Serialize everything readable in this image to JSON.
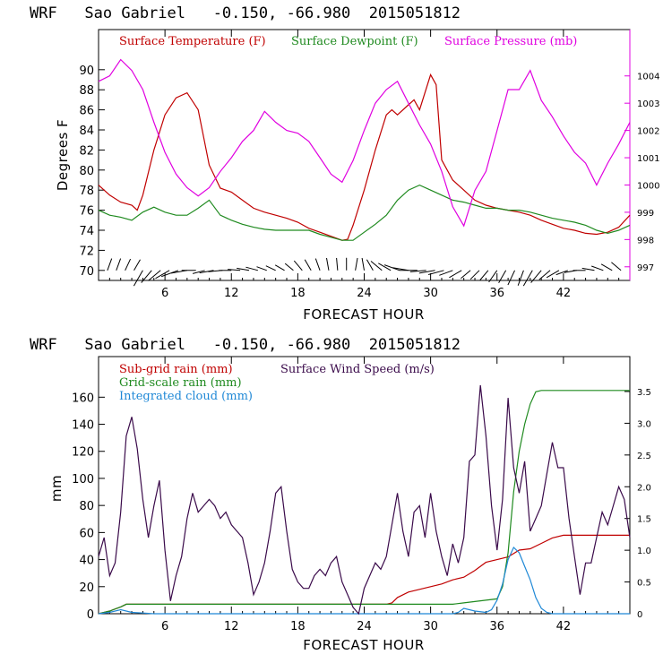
{
  "colors": {
    "temperature": "#c00000",
    "dewpoint": "#1f8a1f",
    "pressure": "#e000e0",
    "subgrid_rain": "#c00000",
    "gridscale_rain": "#1f8a1f",
    "cloud": "#1f88d6",
    "wind": "#3a0a4a",
    "axis": "#000000"
  },
  "chart_data": [
    {
      "type": "line",
      "title": "WRF   Sao Gabriel   -0.150, -66.980  2015051812",
      "xlabel": "FORECAST HOUR",
      "ylabel": "Degrees F",
      "xlim": [
        0,
        48
      ],
      "ylim": [
        69,
        94
      ],
      "y2lim": [
        996.5,
        1005.7
      ],
      "xticks": [
        6,
        12,
        18,
        24,
        30,
        36,
        42
      ],
      "yticks": [
        70,
        72,
        74,
        76,
        78,
        80,
        82,
        84,
        86,
        88,
        90
      ],
      "y2ticks": [
        997,
        998,
        999,
        1000,
        1001,
        1002,
        1003,
        1004
      ],
      "legend": [
        "Surface Temperature (F)",
        "Surface Dewpoint (F)",
        "Surface Pressure (mb)"
      ],
      "series": [
        {
          "name": "Surface Temperature (F)",
          "axis": "left",
          "x": [
            0,
            1,
            2,
            3,
            3.5,
            4,
            5,
            6,
            7,
            8,
            9,
            10,
            11,
            12,
            13,
            14,
            15,
            16,
            17,
            18,
            19,
            20,
            21,
            22,
            22.5,
            23,
            24,
            25,
            26,
            26.5,
            27,
            28,
            28.5,
            29,
            30,
            30.5,
            31,
            32,
            33,
            34,
            35,
            36,
            37,
            38,
            39,
            40,
            41,
            42,
            43,
            44,
            45,
            46,
            47,
            48
          ],
          "y": [
            78.5,
            77.5,
            76.8,
            76.5,
            76,
            77.5,
            82,
            85.5,
            87.2,
            87.7,
            86,
            80.5,
            78.2,
            77.8,
            77,
            76.2,
            75.8,
            75.5,
            75.2,
            74.8,
            74.2,
            73.8,
            73.4,
            73,
            73.1,
            74.5,
            78,
            82,
            85.5,
            86,
            85.5,
            86.5,
            87,
            86,
            89.5,
            88.5,
            81,
            79,
            78,
            77,
            76.5,
            76.2,
            76,
            75.8,
            75.5,
            75,
            74.6,
            74.2,
            74,
            73.7,
            73.6,
            73.8,
            74.3,
            75.5
          ]
        },
        {
          "name": "Surface Dewpoint (F)",
          "axis": "left",
          "x": [
            0,
            1,
            2,
            3,
            4,
            5,
            6,
            7,
            8,
            9,
            10,
            11,
            12,
            13,
            14,
            15,
            16,
            17,
            18,
            19,
            20,
            21,
            22,
            23,
            24,
            25,
            26,
            27,
            28,
            29,
            30,
            31,
            32,
            33,
            34,
            35,
            36,
            37,
            38,
            39,
            40,
            41,
            42,
            43,
            44,
            45,
            46,
            47,
            48
          ],
          "y": [
            76,
            75.5,
            75.3,
            75,
            75.8,
            76.3,
            75.8,
            75.5,
            75.5,
            76.2,
            77,
            75.5,
            75,
            74.6,
            74.3,
            74.1,
            74,
            74,
            74,
            74,
            73.6,
            73.3,
            73,
            73,
            73.8,
            74.6,
            75.5,
            77,
            78,
            78.5,
            78,
            77.5,
            77,
            76.8,
            76.5,
            76.2,
            76.2,
            76,
            76,
            75.8,
            75.5,
            75.2,
            75,
            74.8,
            74.5,
            74,
            73.7,
            74,
            74.5
          ]
        },
        {
          "name": "Surface Pressure (mb)",
          "axis": "right",
          "x": [
            0,
            1,
            2,
            3,
            4,
            5,
            6,
            7,
            8,
            9,
            10,
            11,
            12,
            13,
            14,
            15,
            16,
            17,
            18,
            19,
            20,
            21,
            22,
            23,
            24,
            25,
            26,
            27,
            28,
            29,
            30,
            31,
            32,
            33,
            34,
            35,
            36,
            37,
            38,
            39,
            40,
            41,
            42,
            43,
            44,
            45,
            46,
            47,
            48
          ],
          "y": [
            1003.8,
            1004,
            1004.6,
            1004.2,
            1003.5,
            1002.3,
            1001.2,
            1000.4,
            999.9,
            999.6,
            999.9,
            1000.5,
            1001,
            1001.6,
            1002,
            1002.7,
            1002.3,
            1002,
            1001.9,
            1001.6,
            1001,
            1000.4,
            1000.1,
            1000.9,
            1002,
            1003,
            1003.5,
            1003.8,
            1003,
            1002.2,
            1001.5,
            1000.5,
            999.2,
            998.5,
            999.8,
            1000.5,
            1002,
            1003.5,
            1003.5,
            1004.2,
            1003.1,
            1002.5,
            1001.8,
            1001.2,
            1000.8,
            1000,
            1000.8,
            1001.5,
            1002.3
          ]
        }
      ],
      "wind_barbs": {
        "x": [
          0.8,
          1.6,
          2.4,
          3.2,
          4.0,
          4.8,
          5.6,
          6.4,
          7.2,
          8.0,
          8.8,
          9.6,
          10.4,
          11.2,
          12.0,
          12.8,
          13.6,
          14.4,
          15.2,
          16.0,
          16.8,
          17.6,
          18.4,
          19.2,
          20.0,
          20.8,
          21.6,
          22.4,
          23.2,
          24.0,
          24.8,
          25.6,
          26.4,
          27.2,
          28.0,
          28.8,
          29.6,
          30.4,
          31.2,
          32.0,
          32.8,
          33.6,
          34.4,
          35.2,
          36.0,
          36.8,
          37.6,
          38.4,
          39.2,
          40.0,
          40.8,
          41.6,
          42.4,
          43.2,
          44.0,
          44.8,
          45.6,
          46.4,
          47.2
        ],
        "direction_deg": [
          20,
          20,
          25,
          30,
          210,
          220,
          230,
          240,
          250,
          260,
          270,
          255,
          260,
          265,
          270,
          275,
          280,
          285,
          290,
          295,
          300,
          310,
          320,
          330,
          340,
          350,
          355,
          0,
          10,
          350,
          330,
          310,
          300,
          290,
          280,
          270,
          265,
          260,
          255,
          250,
          240,
          230,
          225,
          220,
          215,
          210,
          205,
          200,
          210,
          220,
          230,
          240,
          250,
          260,
          270,
          280,
          290,
          300,
          310
        ],
        "length_px": [
          14,
          14,
          14,
          14,
          20,
          18,
          18,
          18,
          20,
          18,
          16,
          14,
          16,
          16,
          14,
          14,
          14,
          14,
          12,
          12,
          12,
          12,
          14,
          14,
          14,
          14,
          14,
          14,
          14,
          14,
          14,
          16,
          16,
          18,
          18,
          20,
          18,
          18,
          18,
          16,
          16,
          14,
          14,
          14,
          16,
          16,
          18,
          18,
          20,
          18,
          16,
          16,
          14,
          14,
          14,
          14,
          14,
          14,
          14
        ]
      }
    },
    {
      "type": "line",
      "title": "WRF   Sao Gabriel   -0.150, -66.980  2015051812",
      "xlabel": "FORECAST HOUR",
      "ylabel": "mm",
      "xlim": [
        0,
        48
      ],
      "ylim": [
        0,
        190
      ],
      "y2lim": [
        0,
        4.05
      ],
      "xticks": [
        6,
        12,
        18,
        24,
        30,
        36,
        42
      ],
      "yticks": [
        0,
        20,
        40,
        60,
        80,
        100,
        120,
        140,
        160
      ],
      "y2ticks": [
        0,
        0.5,
        1.0,
        1.5,
        2.0,
        2.5,
        3.0,
        3.5
      ],
      "legend": [
        "Sub-grid rain (mm)",
        "Grid-scale rain (mm)",
        "Integrated cloud (mm)",
        "Surface Wind Speed (m/s)"
      ],
      "series": [
        {
          "name": "Sub-grid rain (mm)",
          "axis": "left",
          "x": [
            0,
            1,
            2,
            2.5,
            3,
            26,
            26.5,
            27,
            28,
            29,
            30,
            31,
            32,
            33,
            34,
            35,
            36,
            37,
            38,
            39,
            40,
            41,
            42,
            43,
            44,
            45,
            46,
            47,
            48
          ],
          "y": [
            0,
            2,
            5,
            7,
            7,
            7,
            8,
            12,
            16,
            18,
            20,
            22,
            25,
            27,
            32,
            38,
            40,
            42,
            47,
            48,
            52,
            56,
            58,
            58,
            58,
            58,
            58,
            58,
            58
          ]
        },
        {
          "name": "Grid-scale rain (mm)",
          "axis": "left",
          "x": [
            0,
            1,
            2,
            2.5,
            3,
            26,
            30,
            31,
            32,
            33,
            34,
            35,
            36,
            36.5,
            37,
            37.5,
            38,
            38.5,
            39,
            39.5,
            40,
            41,
            48
          ],
          "y": [
            0,
            2,
            5,
            7,
            7,
            7,
            7,
            7,
            7,
            8,
            9,
            10,
            11,
            20,
            45,
            90,
            120,
            140,
            155,
            164,
            165,
            165,
            165
          ]
        },
        {
          "name": "Integrated cloud (mm)",
          "axis": "left",
          "x": [
            0,
            1,
            2,
            3,
            4,
            5,
            6,
            30,
            31,
            32,
            32.5,
            33,
            34,
            35,
            35.5,
            36,
            36.5,
            37,
            37.5,
            38,
            38.5,
            39,
            39.5,
            40,
            40.5,
            41,
            48
          ],
          "y": [
            0,
            1,
            3,
            1,
            0.5,
            0,
            0,
            0,
            0,
            0,
            1,
            4,
            2,
            1,
            3,
            10,
            22,
            40,
            49,
            45,
            35,
            25,
            12,
            4,
            1,
            0,
            0
          ]
        },
        {
          "name": "Surface Wind Speed (m/s)",
          "axis": "right",
          "x": [
            0,
            0.5,
            1,
            1.5,
            2,
            2.5,
            3,
            3.5,
            4,
            4.5,
            5,
            5.5,
            6,
            6.5,
            7,
            7.5,
            8,
            8.5,
            9,
            9.5,
            10,
            10.5,
            11,
            11.5,
            12,
            12.5,
            13,
            13.5,
            14,
            14.5,
            15,
            15.5,
            16,
            16.5,
            17,
            17.5,
            18,
            18.5,
            19,
            19.5,
            20,
            20.5,
            21,
            21.5,
            22,
            22.5,
            23,
            23.5,
            24,
            24.5,
            25,
            25.5,
            26,
            26.5,
            27,
            27.5,
            28,
            28.5,
            29,
            29.5,
            30,
            30.5,
            31,
            31.5,
            32,
            32.5,
            33,
            33.5,
            34,
            34.5,
            35,
            35.5,
            36,
            36.5,
            37,
            37.5,
            38,
            38.5,
            39,
            39.5,
            40,
            40.5,
            41,
            41.5,
            42,
            42.5,
            43,
            43.5,
            44,
            44.5,
            45,
            45.5,
            46,
            46.5,
            47,
            47.5,
            48
          ],
          "y": [
            0.9,
            1.2,
            0.6,
            0.8,
            1.6,
            2.8,
            3.1,
            2.6,
            1.8,
            1.2,
            1.7,
            2.1,
            1.0,
            0.2,
            0.6,
            0.9,
            1.5,
            1.9,
            1.6,
            1.7,
            1.8,
            1.7,
            1.5,
            1.6,
            1.4,
            1.3,
            1.2,
            0.8,
            0.3,
            0.5,
            0.8,
            1.3,
            1.9,
            2.0,
            1.3,
            0.7,
            0.5,
            0.4,
            0.4,
            0.6,
            0.7,
            0.6,
            0.8,
            0.9,
            0.5,
            0.3,
            0.1,
            0.0,
            0.4,
            0.6,
            0.8,
            0.7,
            0.9,
            1.4,
            1.9,
            1.3,
            0.9,
            1.6,
            1.7,
            1.2,
            1.9,
            1.3,
            0.9,
            0.6,
            1.1,
            0.8,
            1.2,
            2.4,
            2.5,
            3.6,
            2.8,
            1.7,
            1.0,
            1.8,
            3.4,
            2.3,
            1.9,
            2.4,
            1.3,
            1.5,
            1.7,
            2.2,
            2.7,
            2.3,
            2.3,
            1.5,
            0.9,
            0.3,
            0.8,
            0.8,
            1.2,
            1.6,
            1.4,
            1.7,
            2.0,
            1.8,
            1.2
          ]
        }
      ]
    }
  ]
}
